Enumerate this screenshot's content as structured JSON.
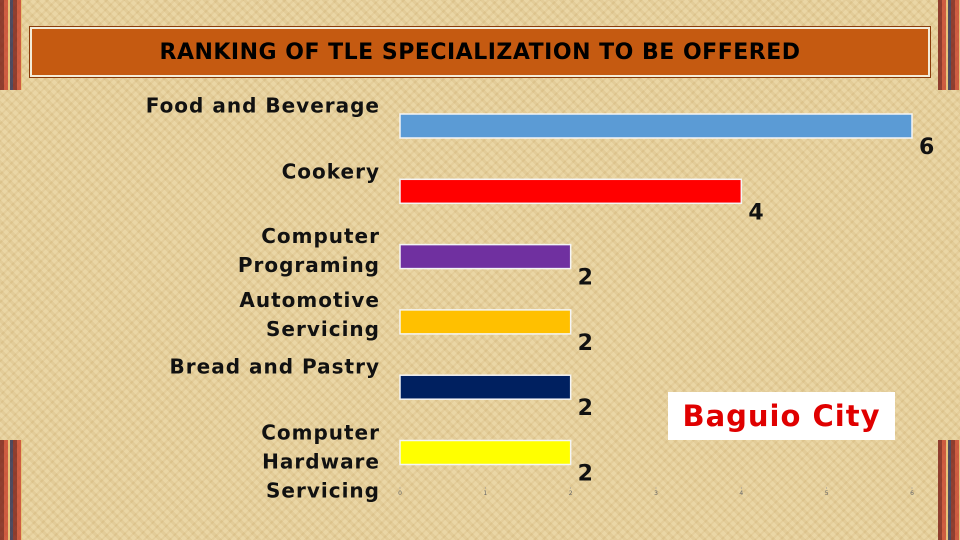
{
  "chart_data": {
    "type": "hbar",
    "title": "RANKING OF TLE SPECIALIZATION TO BE OFFERED",
    "categories": [
      "Food and Beverage",
      "Cookery",
      "Computer\nPrograming",
      "Automotive\nServicing",
      "Bread and Pastry",
      "Computer\nHardware\nServicing"
    ],
    "values": [
      6,
      4,
      2,
      2,
      2,
      2
    ],
    "colors": [
      "#5b9bd5",
      "#ff0000",
      "#7030a0",
      "#ffc000",
      "#002060",
      "#ffff00"
    ],
    "xlim": [
      0,
      6
    ],
    "xticks": [
      0,
      1,
      2,
      3,
      4,
      5,
      6
    ],
    "annotation": "Baguio City"
  }
}
